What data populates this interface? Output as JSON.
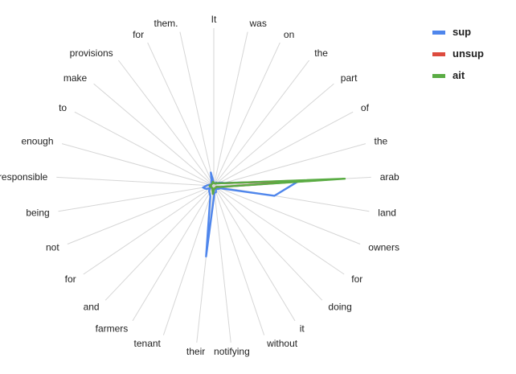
{
  "chart_data": {
    "type": "radar",
    "categories": [
      "It",
      "was",
      "on",
      "the",
      "part",
      "of",
      "the",
      "arab",
      "land",
      "owners",
      "for",
      "doing",
      "it",
      "without",
      "notifying",
      "their",
      "tenant",
      "farmers",
      "and",
      "for",
      "not",
      "being",
      "responsible",
      "enough",
      "to",
      "make",
      "provisions",
      "for",
      "them."
    ],
    "series": [
      {
        "name": "sup",
        "color": "#4f86ec",
        "values": [
          0.02,
          0.02,
          0.02,
          0.03,
          0.03,
          0.05,
          0.08,
          0.62,
          0.45,
          0.05,
          0.04,
          0.03,
          0.03,
          0.05,
          0.05,
          0.52,
          0.08,
          0.06,
          0.05,
          0.03,
          0.06,
          0.08,
          0.05,
          0.03,
          0.02,
          0.02,
          0.03,
          0.04,
          0.1
        ]
      },
      {
        "name": "unsup",
        "color": "#dd4b3e",
        "values": [
          0.02,
          0.02,
          0.02,
          0.02,
          0.03,
          0.04,
          0.07,
          0.83,
          0.05,
          0.02,
          0.02,
          0.02,
          0.02,
          0.02,
          0.02,
          0.06,
          0.03,
          0.02,
          0.02,
          0.02,
          0.02,
          0.03,
          0.03,
          0.02,
          0.02,
          0.02,
          0.02,
          0.02,
          0.03
        ]
      },
      {
        "name": "ait",
        "color": "#5aac44",
        "values": [
          0.02,
          0.02,
          0.02,
          0.02,
          0.03,
          0.04,
          0.07,
          0.96,
          0.05,
          0.02,
          0.02,
          0.02,
          0.02,
          0.02,
          0.02,
          0.06,
          0.03,
          0.02,
          0.02,
          0.02,
          0.02,
          0.03,
          0.03,
          0.02,
          0.02,
          0.02,
          0.02,
          0.02,
          0.03
        ]
      }
    ],
    "rmax": 1,
    "grid": true,
    "legend_position": "top-right"
  }
}
